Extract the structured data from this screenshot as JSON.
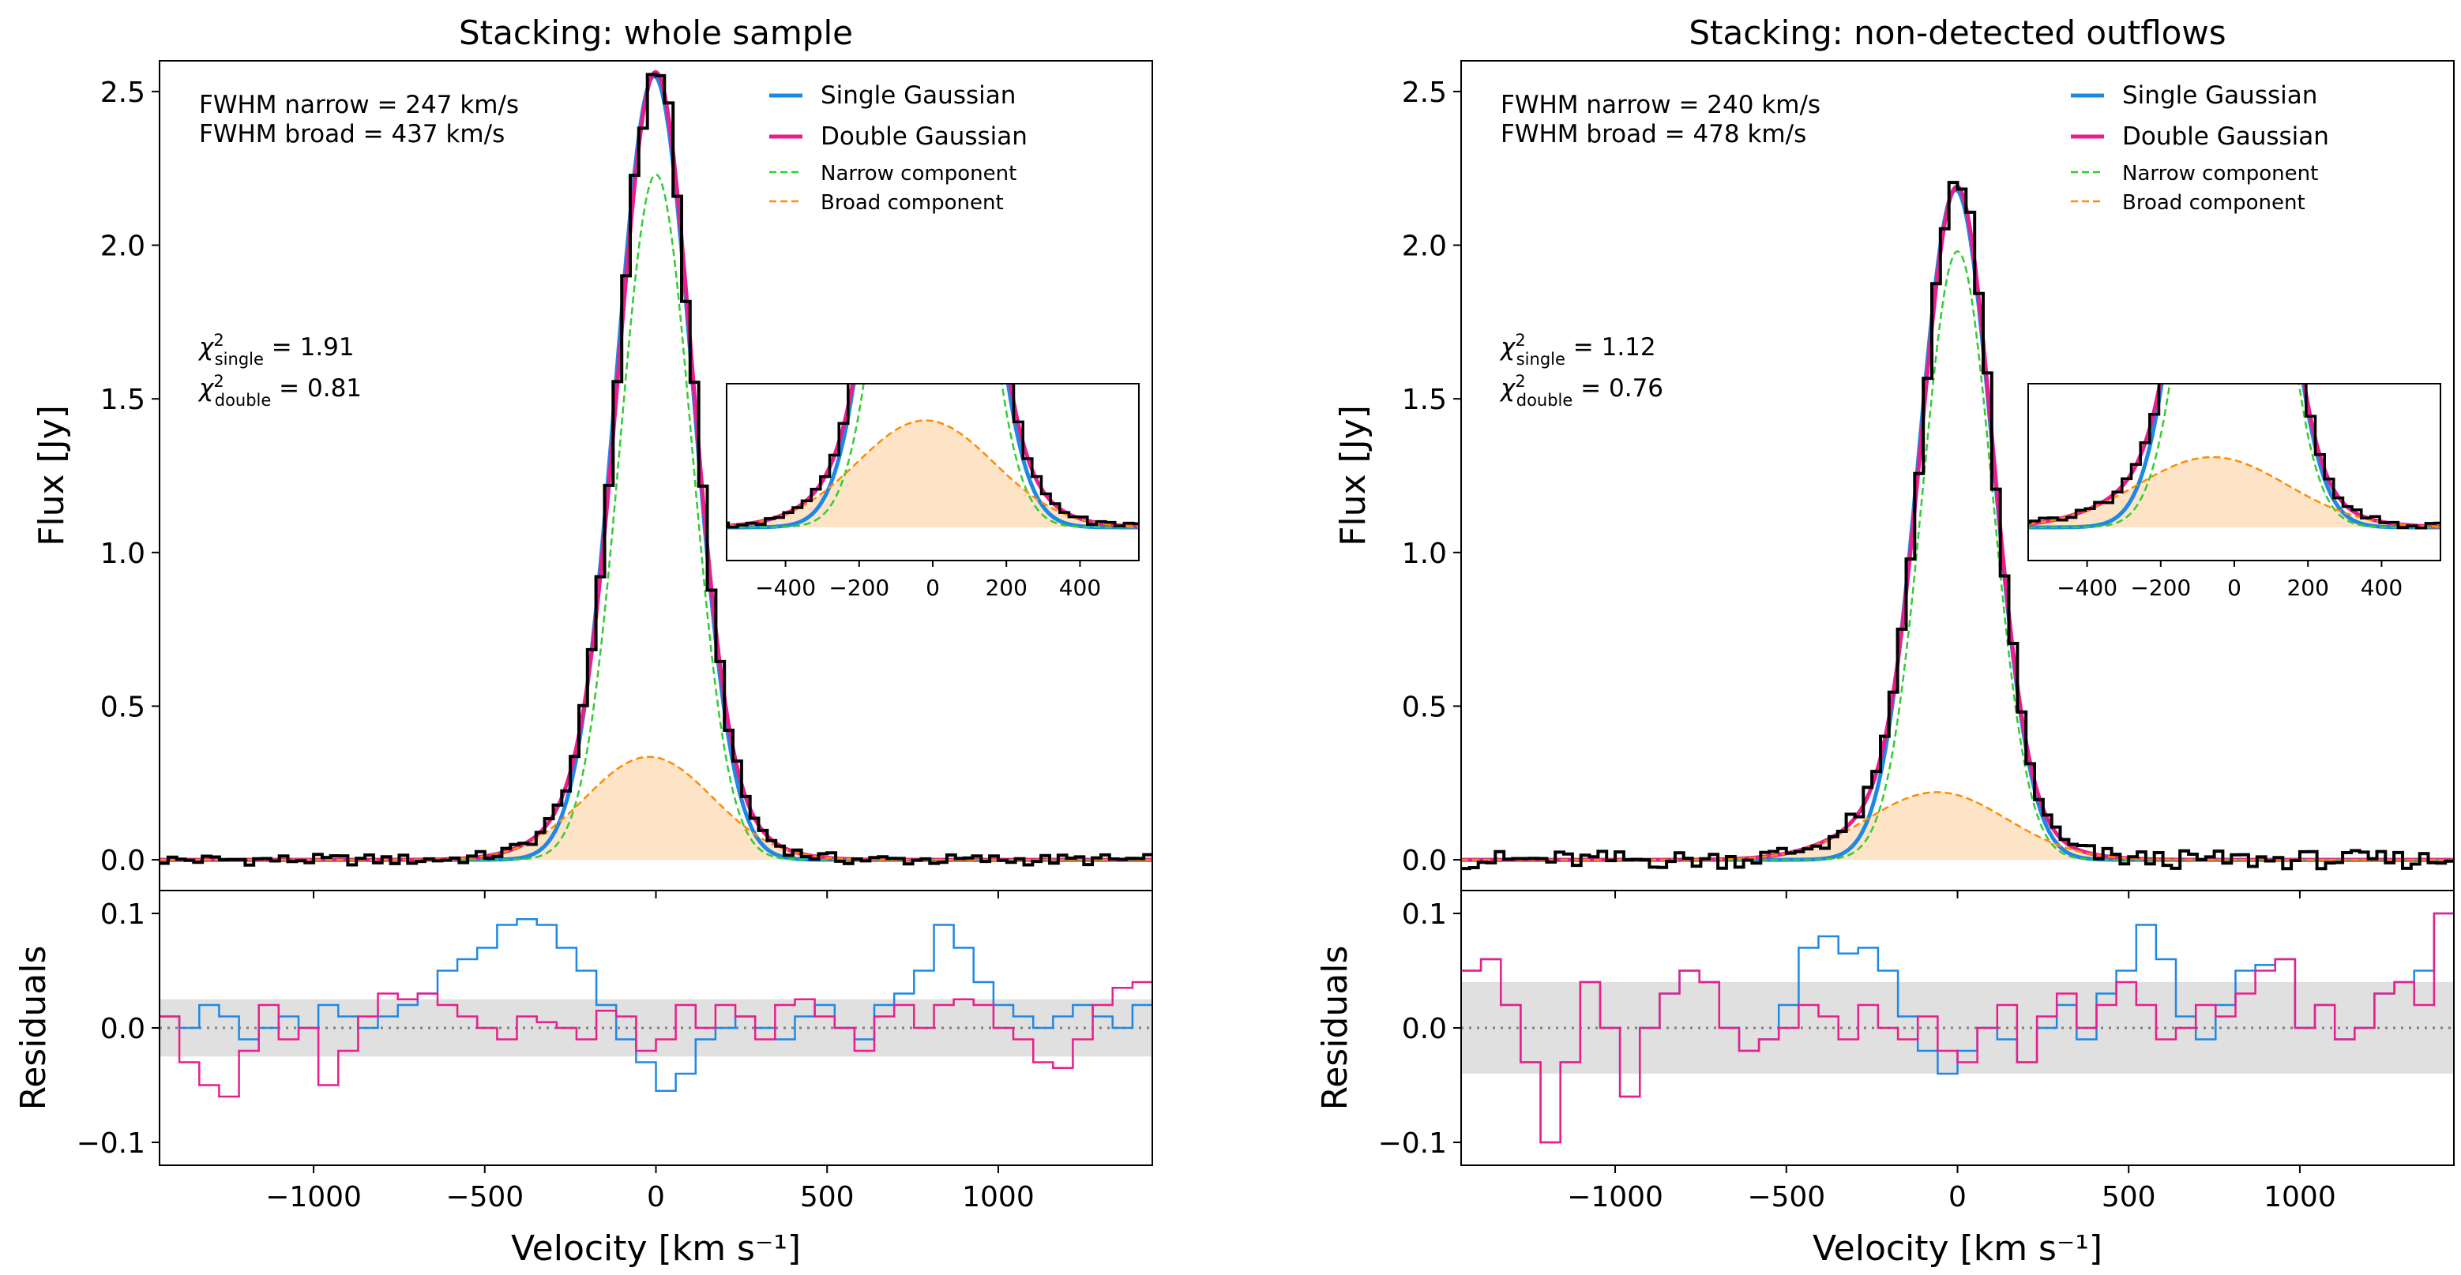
{
  "colors": {
    "single": "#1e88e5",
    "double": "#e91e8c",
    "narrow": "#33cc33",
    "broad": "#ff8c00",
    "broad_fill": "#fde4c6",
    "data": "#000000",
    "band": "#e0e0e0",
    "zero_line": "#808080"
  },
  "chart_data": [
    {
      "type": "line",
      "title": "Stacking: whole sample",
      "xlabel": "Velocity [km s⁻¹]",
      "ylabel": "Flux [Jy]",
      "residual_ylabel": "Residuals",
      "xlim": [
        -1450,
        1450
      ],
      "ylim": [
        -0.1,
        2.6
      ],
      "yticks": [
        0.0,
        0.5,
        1.0,
        1.5,
        2.0,
        2.5
      ],
      "ytick_labels": [
        "0.0",
        "0.5",
        "1.0",
        "1.5",
        "2.0",
        "2.5"
      ],
      "xticks": [
        -1000,
        -500,
        0,
        500,
        1000
      ],
      "xtick_labels": [
        "−1000",
        "−500",
        "0",
        "500",
        "1000"
      ],
      "residual_ylim": [
        -0.12,
        0.12
      ],
      "residual_yticks": [
        -0.1,
        0.0,
        0.1
      ],
      "residual_ytick_labels": [
        "−0.1",
        "0.0",
        "0.1"
      ],
      "residual_band": 0.025,
      "fwhm_narrow_text": "FWHM narrow = 247 km/s",
      "fwhm_broad_text": "FWHM broad = 437 km/s",
      "chi2_single": "1.91",
      "chi2_double": "0.81",
      "legend": [
        "Single Gaussian",
        "Double Gaussian",
        "Narrow component",
        "Broad component"
      ],
      "single_fit": {
        "amplitude": 2.55,
        "center": -5,
        "fwhm": 265
      },
      "narrow_component": {
        "amplitude": 2.23,
        "center": 0,
        "fwhm": 247
      },
      "broad_component": {
        "amplitude": 0.335,
        "center": -20,
        "fwhm": 437
      },
      "data_step": 25,
      "data_noise": 0.018,
      "residuals_single": [
        0.01,
        0.0,
        0.02,
        0.01,
        -0.01,
        0.0,
        0.01,
        0.0,
        0.02,
        0.01,
        0.0,
        0.01,
        0.02,
        0.03,
        0.05,
        0.06,
        0.07,
        0.09,
        0.095,
        0.09,
        0.07,
        0.05,
        0.02,
        -0.01,
        -0.03,
        -0.055,
        -0.04,
        -0.01,
        0.0,
        0.01,
        0.0,
        -0.01,
        0.01,
        0.02,
        0.0,
        -0.01,
        0.02,
        0.03,
        0.05,
        0.09,
        0.07,
        0.04,
        0.02,
        0.01,
        0.0,
        0.01,
        0.02,
        0.01,
        0.0,
        0.02
      ],
      "residuals_double": [
        0.01,
        -0.03,
        -0.05,
        -0.06,
        -0.02,
        0.02,
        -0.01,
        0.0,
        -0.05,
        -0.02,
        0.01,
        0.03,
        0.025,
        0.03,
        0.02,
        0.01,
        0.0,
        -0.01,
        0.01,
        0.005,
        0.0,
        -0.01,
        0.015,
        0.01,
        -0.02,
        -0.01,
        0.02,
        0.0,
        0.02,
        0.01,
        -0.01,
        0.02,
        0.025,
        0.01,
        0.0,
        -0.02,
        0.01,
        0.02,
        0.0,
        0.02,
        0.025,
        0.02,
        0.0,
        -0.01,
        -0.03,
        -0.035,
        -0.01,
        0.02,
        0.035,
        0.04
      ],
      "inset": {
        "xlim": [
          -560,
          560
        ],
        "ylim": [
          0.0,
          0.45
        ],
        "xticks": [
          -400,
          -200,
          0,
          200,
          400
        ],
        "xtick_labels": [
          "−400",
          "−200",
          "0",
          "200",
          "400"
        ]
      }
    },
    {
      "type": "line",
      "title": "Stacking: non-detected outflows",
      "xlabel": "Velocity [km s⁻¹]",
      "ylabel": "Flux [Jy]",
      "residual_ylabel": "Residuals",
      "xlim": [
        -1450,
        1450
      ],
      "ylim": [
        -0.1,
        2.6
      ],
      "yticks": [
        0.0,
        0.5,
        1.0,
        1.5,
        2.0,
        2.5
      ],
      "ytick_labels": [
        "0.0",
        "0.5",
        "1.0",
        "1.5",
        "2.0",
        "2.5"
      ],
      "xticks": [
        -1000,
        -500,
        0,
        500,
        1000
      ],
      "xtick_labels": [
        "−1000",
        "−500",
        "0",
        "500",
        "1000"
      ],
      "residual_ylim": [
        -0.12,
        0.12
      ],
      "residual_yticks": [
        -0.1,
        0.0,
        0.1
      ],
      "residual_ytick_labels": [
        "−0.1",
        "0.0",
        "0.1"
      ],
      "residual_band": 0.04,
      "fwhm_narrow_text": "FWHM narrow = 240 km/s",
      "fwhm_broad_text": "FWHM broad = 478 km/s",
      "chi2_single": "1.12",
      "chi2_double": "0.76",
      "legend": [
        "Single Gaussian",
        "Double Gaussian",
        "Narrow component",
        "Broad component"
      ],
      "single_fit": {
        "amplitude": 2.18,
        "center": -5,
        "fwhm": 255
      },
      "narrow_component": {
        "amplitude": 1.98,
        "center": 0,
        "fwhm": 240
      },
      "broad_component": {
        "amplitude": 0.22,
        "center": -60,
        "fwhm": 478
      },
      "data_step": 25,
      "data_noise": 0.03,
      "residuals_single": [
        0.05,
        0.06,
        0.02,
        -0.03,
        -0.1,
        -0.03,
        0.04,
        0.0,
        -0.06,
        0.0,
        0.03,
        0.05,
        0.04,
        0.0,
        -0.02,
        -0.01,
        0.02,
        0.07,
        0.08,
        0.065,
        0.07,
        0.05,
        0.01,
        -0.02,
        -0.04,
        -0.02,
        0.0,
        -0.01,
        -0.03,
        0.0,
        0.02,
        -0.01,
        0.03,
        0.05,
        0.09,
        0.06,
        0.01,
        -0.01,
        0.02,
        0.05,
        0.055,
        0.06,
        0.0,
        0.02,
        -0.01,
        0.0,
        0.03,
        0.04,
        0.05,
        0.1
      ],
      "residuals_double": [
        0.05,
        0.06,
        0.02,
        -0.03,
        -0.1,
        -0.03,
        0.04,
        0.0,
        -0.06,
        0.0,
        0.03,
        0.05,
        0.04,
        0.0,
        -0.02,
        -0.01,
        0.0,
        0.02,
        0.01,
        -0.01,
        0.02,
        0.0,
        -0.01,
        0.01,
        -0.02,
        -0.03,
        0.0,
        0.02,
        -0.03,
        0.01,
        0.03,
        0.0,
        0.02,
        0.04,
        0.02,
        -0.01,
        0.0,
        0.02,
        0.01,
        0.03,
        0.05,
        0.06,
        0.0,
        0.02,
        -0.01,
        0.0,
        0.03,
        0.04,
        0.02,
        0.1
      ],
      "inset": {
        "xlim": [
          -560,
          560
        ],
        "ylim": [
          0.0,
          0.45
        ],
        "xticks": [
          -400,
          -200,
          0,
          200,
          400
        ],
        "xtick_labels": [
          "−400",
          "−200",
          "0",
          "200",
          "400"
        ]
      }
    }
  ]
}
